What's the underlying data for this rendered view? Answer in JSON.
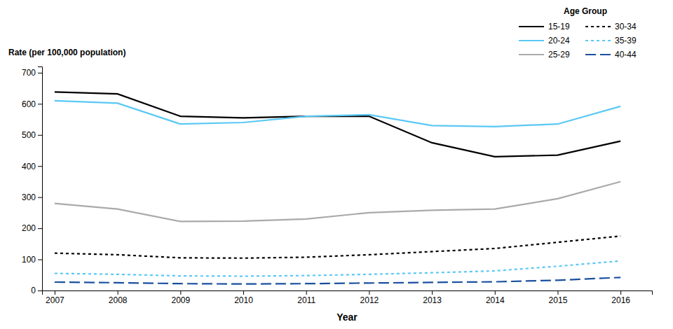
{
  "chart_data": {
    "type": "line",
    "xlabel": "Year",
    "ylabel": "Rate (per 100,000 population)",
    "legend_title": "Age Group",
    "legend": "upper right",
    "grid": false,
    "x": [
      2007,
      2008,
      2009,
      2010,
      2011,
      2012,
      2013,
      2014,
      2015,
      2016
    ],
    "series": [
      {
        "name": "15-19",
        "color": "#000000",
        "line_style": "solid",
        "values": [
          638,
          632,
          560,
          555,
          560,
          560,
          475,
          430,
          435,
          480
        ]
      },
      {
        "name": "20-24",
        "color": "#5bc8f5",
        "line_style": "solid",
        "values": [
          610,
          602,
          535,
          540,
          560,
          565,
          530,
          527,
          535,
          592
        ]
      },
      {
        "name": "25-29",
        "color": "#aaaaaa",
        "line_style": "solid",
        "values": [
          280,
          262,
          222,
          223,
          230,
          250,
          258,
          262,
          295,
          350
        ]
      },
      {
        "name": "30-34",
        "color": "#000000",
        "line_style": "dotted",
        "values": [
          120,
          115,
          105,
          104,
          107,
          115,
          125,
          135,
          155,
          175
        ]
      },
      {
        "name": "35-39",
        "color": "#5bc8f5",
        "line_style": "dotted",
        "values": [
          55,
          52,
          47,
          46,
          48,
          52,
          57,
          63,
          78,
          95
        ]
      },
      {
        "name": "40-44",
        "color": "#1a4fa0",
        "line_style": "dashed",
        "values": [
          27,
          25,
          22,
          21,
          22,
          24,
          26,
          28,
          33,
          42
        ]
      }
    ],
    "xlim": [
      2006.8,
      2016.5
    ],
    "xticks": [
      2007,
      2008,
      2009,
      2010,
      2011,
      2012,
      2013,
      2014,
      2015,
      2016
    ],
    "ylim": [
      0,
      720
    ],
    "yticks": [
      0,
      100,
      200,
      300,
      400,
      500,
      600,
      700
    ]
  }
}
